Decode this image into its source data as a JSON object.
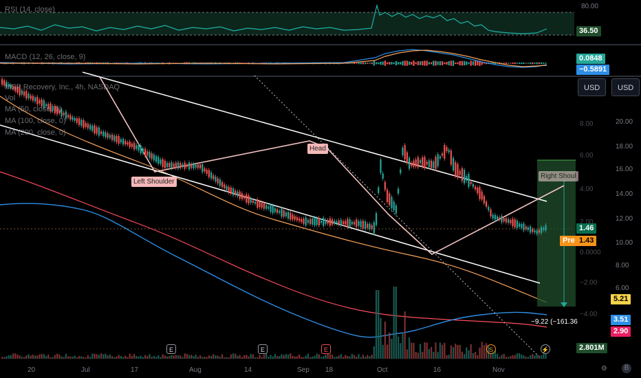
{
  "panes": {
    "rsi": {
      "legend": "RSI (14, close)",
      "top_level": "80.00",
      "value": "36.50"
    },
    "macd": {
      "legend": "MACD (12, 26, close, 9)",
      "value1": "0.0848",
      "value2": "−0.5891"
    },
    "main": {
      "legend_title": "MSP Recovery, Inc., 4h, NASDAQ",
      "legend_vol": "Vol",
      "legend_ma50": "MA (50, close, 0)",
      "legend_ma100": "MA (100, close, 0)",
      "legend_ma200": "MA (200, close, 0)"
    }
  },
  "currency_buttons": [
    "USD",
    "USD"
  ],
  "right_scale_outer": [
    "20.00",
    "18.00",
    "16.00",
    "14.00",
    "12.00",
    "10.00",
    "8.00",
    "6.00"
  ],
  "right_scale_inner": [
    "8.00",
    "6.00",
    "4.00",
    "2.00",
    "0.0000",
    "−2.00",
    "−4.00"
  ],
  "price_badges": {
    "last": "1.46",
    "pre_label": "Pre",
    "pre": "1.43",
    "ma50": "5.21",
    "ma100": "3.51",
    "ma200": "2.90",
    "volume": "2.801M"
  },
  "measure_label": "−9.22 (−161.36",
  "annotations": {
    "left_shoulder": "Left Shoulder",
    "head": "Head",
    "right_shoulder": "Right Shoul"
  },
  "time_axis": [
    "20",
    "Jul",
    "17",
    "Aug",
    "14",
    "Sep",
    "18",
    "Oct",
    "16",
    "Nov"
  ],
  "event_markers": [
    "E",
    "E",
    "E",
    "S"
  ],
  "colors": {
    "up": "#26a69a",
    "down": "#ef5350",
    "ma50": "#f7a35c",
    "ma100": "#ff4d5e",
    "ma200": "#2e8fe6",
    "pattern": "#f4c2c2"
  }
}
